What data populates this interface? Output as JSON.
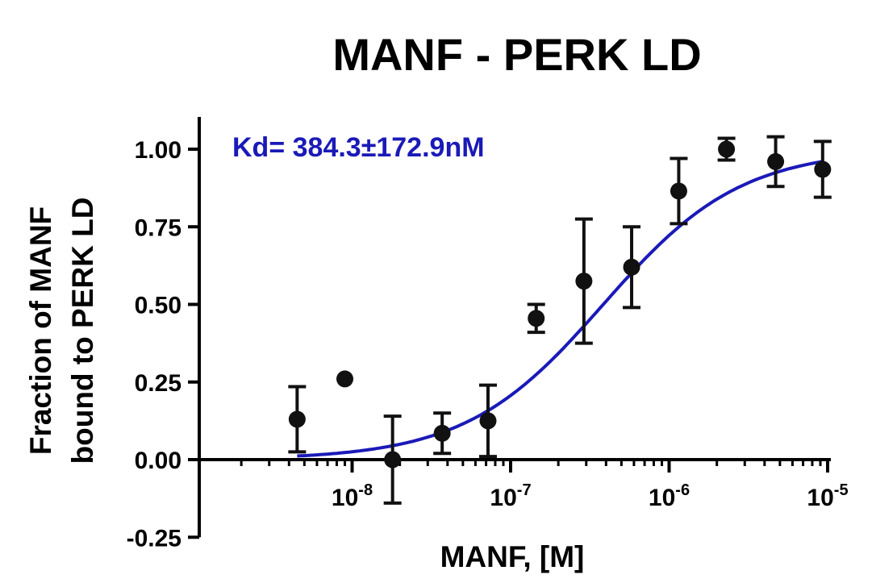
{
  "chart_data": {
    "type": "scatter",
    "title": "MANF - PERK LD",
    "annotation": "Kd= 384.3±172.9nM",
    "xlabel": "MANF, [M]",
    "ylabel_lines": [
      "Fraction of MANF",
      "bound to PERK LD"
    ],
    "x_scale": "log",
    "xlim": [
      1e-09,
      1e-05
    ],
    "ylim": [
      -0.25,
      1.1
    ],
    "x_ticks": [
      {
        "value": 1e-08,
        "base": "10",
        "exp": "-8"
      },
      {
        "value": 1e-07,
        "base": "10",
        "exp": "-7"
      },
      {
        "value": 1e-06,
        "base": "10",
        "exp": "-6"
      },
      {
        "value": 1e-05,
        "base": "10",
        "exp": "-5"
      }
    ],
    "y_ticks": [
      {
        "value": -0.25,
        "label": "-0.25"
      },
      {
        "value": 0.0,
        "label": "0.00"
      },
      {
        "value": 0.25,
        "label": "0.25"
      },
      {
        "value": 0.5,
        "label": "0.50"
      },
      {
        "value": 0.75,
        "label": "0.75"
      },
      {
        "value": 1.0,
        "label": "1.00"
      }
    ],
    "points": [
      {
        "x": 4.5e-09,
        "y": 0.13,
        "err": 0.105
      },
      {
        "x": 9e-09,
        "y": 0.26,
        "err": 0
      },
      {
        "x": 1.8e-08,
        "y": 0.0,
        "err": 0.14
      },
      {
        "x": 3.7e-08,
        "y": 0.085,
        "err": 0.065
      },
      {
        "x": 7.2e-08,
        "y": 0.125,
        "err": 0.115
      },
      {
        "x": 1.45e-07,
        "y": 0.455,
        "err": 0.045
      },
      {
        "x": 2.9e-07,
        "y": 0.575,
        "err": 0.2
      },
      {
        "x": 5.8e-07,
        "y": 0.62,
        "err": 0.13
      },
      {
        "x": 1.15e-06,
        "y": 0.865,
        "err": 0.105
      },
      {
        "x": 2.3e-06,
        "y": 1.0,
        "err": 0.035
      },
      {
        "x": 4.7e-06,
        "y": 0.96,
        "err": 0.08
      },
      {
        "x": 9.3e-06,
        "y": 0.935,
        "err": 0.09
      }
    ],
    "fit": {
      "model": "hyperbolic",
      "kd": 3.843e-07,
      "bmax": 1.0,
      "x_range": [
        4.5e-09,
        9.3e-06
      ]
    },
    "colors": {
      "points": "#111111",
      "fit": "#1a1ab8",
      "annotation": "#1a1ab8",
      "axes": "#000000"
    },
    "grid": false
  }
}
